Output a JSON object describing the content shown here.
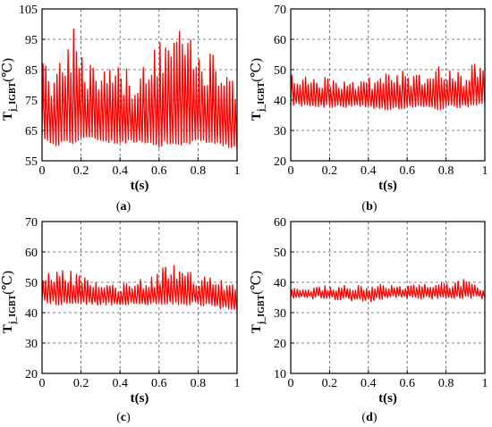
{
  "colors": {
    "trace": "#ff0000",
    "grid": "#555555",
    "frame": "#000000"
  },
  "chart_data": [
    {
      "type": "line",
      "caption_letter": "a",
      "ylabel_main": "T",
      "ylabel_sub": "j_IGBT",
      "ylabel_unit": "(℃)",
      "xlabel": "t(s)",
      "xlim": [
        0,
        1
      ],
      "ylim": [
        55,
        105
      ],
      "xticks": [
        "0",
        "0.2",
        "0.4",
        "0.6",
        "0.8",
        "1"
      ],
      "yticks": [
        "55",
        "65",
        "75",
        "85",
        "95",
        "105"
      ],
      "grid": true,
      "series": [
        {
          "color": "#ff0000",
          "summary": {
            "baseline_low": 60,
            "peak_mean": 88,
            "peak_max": 101,
            "oscillation_cycles": 70
          },
          "x": [
            0,
            0.05,
            0.08,
            0.12,
            0.17,
            0.2,
            0.3,
            0.4,
            0.5,
            0.6,
            0.63,
            0.7,
            0.75,
            0.8,
            0.9,
            1
          ],
          "y_peak": [
            88,
            86,
            101,
            95,
            99,
            92,
            85,
            86,
            84,
            96,
            100,
            101,
            97,
            93,
            89,
            88
          ],
          "y_trough": [
            63,
            61,
            60,
            62,
            61,
            63,
            62,
            61,
            62,
            60,
            61,
            60,
            61,
            62,
            61,
            59
          ]
        }
      ]
    },
    {
      "type": "line",
      "caption_letter": "b",
      "ylabel_main": "T",
      "ylabel_sub": "j_IGBT",
      "ylabel_unit": "(℃)",
      "xlabel": "t(s)",
      "xlim": [
        0,
        1
      ],
      "ylim": [
        20,
        70
      ],
      "xticks": [
        "0",
        "0.2",
        "0.4",
        "0.6",
        "0.8",
        "1"
      ],
      "yticks": [
        "20",
        "30",
        "40",
        "50",
        "60",
        "70"
      ],
      "grid": true,
      "series": [
        {
          "color": "#ff0000",
          "summary": {
            "baseline_low": 38,
            "peak_mean": 47,
            "peak_max": 55,
            "oscillation_cycles": 70
          },
          "x": [
            0,
            0.1,
            0.2,
            0.3,
            0.4,
            0.5,
            0.6,
            0.7,
            0.78,
            0.8,
            0.9,
            0.95,
            1
          ],
          "y_peak": [
            49,
            48,
            49,
            47,
            48,
            49,
            50,
            48,
            53,
            50,
            49,
            55,
            50
          ],
          "y_trough": [
            39,
            38,
            38,
            38,
            38,
            37,
            38,
            38,
            37,
            38,
            38,
            38,
            39
          ]
        }
      ]
    },
    {
      "type": "line",
      "caption_letter": "c",
      "ylabel_main": "T",
      "ylabel_sub": "j_IGBT",
      "ylabel_unit": "(℃)",
      "xlabel": "t(s)",
      "xlim": [
        0,
        1
      ],
      "ylim": [
        20,
        70
      ],
      "xticks": [
        "0",
        "0.2",
        "0.4",
        "0.6",
        "0.8",
        "1"
      ],
      "yticks": [
        "20",
        "30",
        "40",
        "50",
        "60",
        "70"
      ],
      "grid": true,
      "series": [
        {
          "color": "#ff0000",
          "summary": {
            "baseline_low": 42,
            "peak_mean": 51,
            "peak_max": 56,
            "oscillation_cycles": 70
          },
          "x": [
            0,
            0.08,
            0.15,
            0.3,
            0.45,
            0.6,
            0.63,
            0.72,
            0.8,
            0.9,
            1
          ],
          "y_peak": [
            51,
            56,
            54,
            50,
            50,
            53,
            56,
            56,
            53,
            51,
            49
          ],
          "y_trough": [
            44,
            43,
            43,
            43,
            43,
            43,
            43,
            43,
            43,
            42,
            41
          ]
        }
      ]
    },
    {
      "type": "line",
      "caption_letter": "d",
      "ylabel_main": "T",
      "ylabel_sub": "j_IGBT",
      "ylabel_unit": "(℃)",
      "xlabel": "t(s)",
      "xlim": [
        0,
        1
      ],
      "ylim": [
        10,
        60
      ],
      "xticks": [
        "0",
        "0.2",
        "0.4",
        "0.6",
        "0.8",
        "1"
      ],
      "yticks": [
        "10",
        "20",
        "30",
        "40",
        "50",
        "60"
      ],
      "grid": true,
      "series": [
        {
          "color": "#ff0000",
          "summary": {
            "baseline_low": 35,
            "peak_mean": 38,
            "peak_max": 41,
            "oscillation_cycles": 70
          },
          "x": [
            0,
            0.2,
            0.4,
            0.5,
            0.6,
            0.8,
            0.9,
            1
          ],
          "y_peak": [
            38,
            39,
            39,
            40,
            39,
            40,
            41,
            38
          ],
          "y_trough": [
            35,
            35,
            34,
            35,
            35,
            35,
            35,
            35
          ]
        }
      ]
    }
  ]
}
